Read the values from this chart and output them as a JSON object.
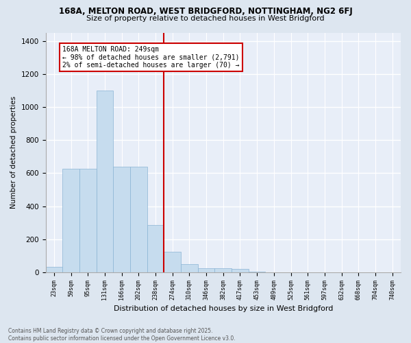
{
  "title_line1": "168A, MELTON ROAD, WEST BRIDGFORD, NOTTINGHAM, NG2 6FJ",
  "title_line2": "Size of property relative to detached houses in West Bridgford",
  "xlabel": "Distribution of detached houses by size in West Bridgford",
  "ylabel": "Number of detached properties",
  "categories": [
    "23sqm",
    "59sqm",
    "95sqm",
    "131sqm",
    "166sqm",
    "202sqm",
    "238sqm",
    "274sqm",
    "310sqm",
    "346sqm",
    "382sqm",
    "417sqm",
    "453sqm",
    "489sqm",
    "525sqm",
    "561sqm",
    "597sqm",
    "632sqm",
    "668sqm",
    "704sqm",
    "740sqm"
  ],
  "values": [
    35,
    625,
    625,
    1100,
    640,
    640,
    285,
    125,
    50,
    25,
    25,
    20,
    5,
    0,
    0,
    0,
    0,
    0,
    0,
    0,
    0
  ],
  "bar_color": "#c6dcee",
  "bar_edge_color": "#8ab4d4",
  "vline_color": "#cc0000",
  "annotation_text": "168A MELTON ROAD: 249sqm\n← 98% of detached houses are smaller (2,791)\n2% of semi-detached houses are larger (70) →",
  "annotation_box_color": "#cc0000",
  "ylim": [
    0,
    1450
  ],
  "yticks": [
    0,
    200,
    400,
    600,
    800,
    1000,
    1200,
    1400
  ],
  "bg_color": "#dde6f0",
  "plot_bg_color": "#e8eef8",
  "grid_color": "#ffffff",
  "footnote": "Contains HM Land Registry data © Crown copyright and database right 2025.\nContains public sector information licensed under the Open Government Licence v3.0."
}
